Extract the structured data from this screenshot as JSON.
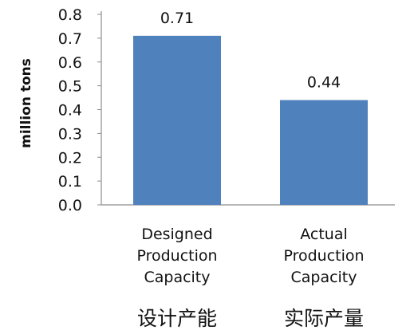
{
  "chart_data": {
    "type": "bar",
    "title": "",
    "xlabel": "",
    "ylabel": "million tons",
    "ylim": [
      0,
      0.8
    ],
    "yticks": [
      "0.0",
      "0.1",
      "0.2",
      "0.3",
      "0.4",
      "0.5",
      "0.6",
      "0.7",
      "0.8"
    ],
    "grid": false,
    "legend": "none",
    "categories": [
      {
        "lines": [
          "Designed",
          "Production",
          "Capacity"
        ],
        "chinese": "设计产能"
      },
      {
        "lines": [
          "Actual",
          "Production",
          "Capacity"
        ],
        "chinese": "实际产量"
      }
    ],
    "values": [
      0.71,
      0.44
    ],
    "data_labels": [
      "0.71",
      "0.44"
    ],
    "bar_color": "#4F81BD"
  }
}
